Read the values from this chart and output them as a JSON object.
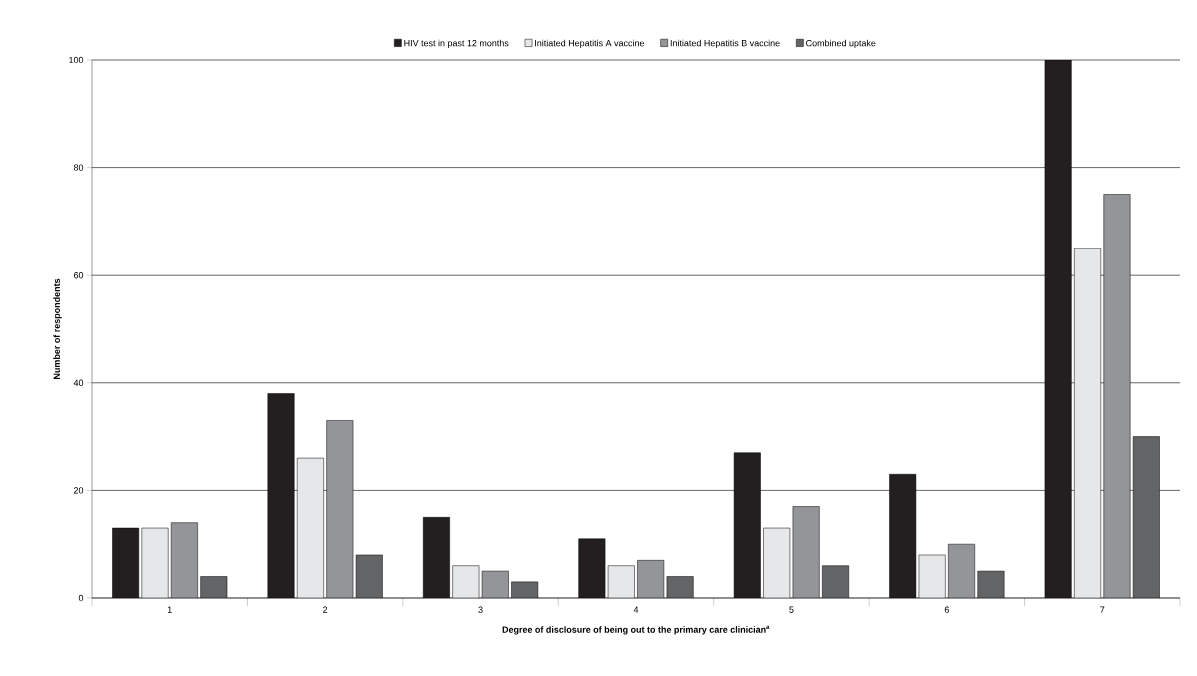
{
  "chart_data": {
    "type": "bar",
    "xlabel": "Degree of disclosure of being out to the primary care clinician$^{a}$",
    "ylabel": "Number of respondents",
    "categories": [
      "1",
      "2",
      "3",
      "4",
      "5",
      "6",
      "7"
    ],
    "series": [
      {
        "name": "HIV test in past 12 months",
        "color": "#231f20",
        "values": [
          13,
          38,
          15,
          11,
          27,
          23,
          100
        ]
      },
      {
        "name": "Initiated Hepatitis A vaccine",
        "color": "#e6e7e8",
        "values": [
          13,
          26,
          6,
          6,
          13,
          8,
          65
        ]
      },
      {
        "name": "Initiated Hepatitis B vaccine",
        "color": "#939598",
        "values": [
          14,
          33,
          5,
          7,
          17,
          10,
          75
        ]
      },
      {
        "name": "Combined uptake",
        "color": "#636466",
        "values": [
          4,
          8,
          3,
          4,
          6,
          5,
          30
        ]
      }
    ],
    "ylim": [
      0,
      100
    ],
    "yticks": [
      0,
      20,
      40,
      60,
      80,
      100
    ],
    "grid": "y",
    "legend": "top"
  }
}
